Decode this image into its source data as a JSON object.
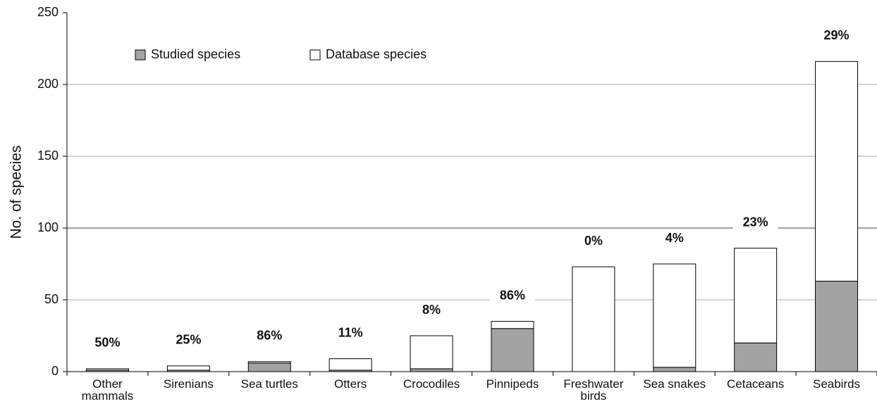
{
  "chart_data": {
    "type": "stacked_bar",
    "y_label": "No. of species",
    "categories": [
      "Other mammals",
      "Sirenians",
      "Sea turtles",
      "Otters",
      "Crocodiles",
      "Pinnipeds",
      "Freshwater birds",
      "Sea snakes",
      "Cetaceans",
      "Seabirds"
    ],
    "series": [
      {
        "name": "Studied species",
        "color": "#a3a3a3",
        "values": [
          1,
          1,
          6,
          1,
          2,
          30,
          0,
          3,
          20,
          63
        ]
      },
      {
        "name": "Database species",
        "color": "#ffffff",
        "values": [
          1,
          3,
          1,
          8,
          23,
          5,
          73,
          72,
          66,
          153
        ]
      }
    ],
    "annotations": [
      "50%",
      "25%",
      "86%",
      "11%",
      "8%",
      "86%",
      "0%",
      "4%",
      "23%",
      "29%"
    ],
    "ylim": [
      0,
      250
    ],
    "yticks": [
      0,
      50,
      100,
      150,
      200,
      250
    ],
    "grid": true,
    "legend": "top-left"
  }
}
